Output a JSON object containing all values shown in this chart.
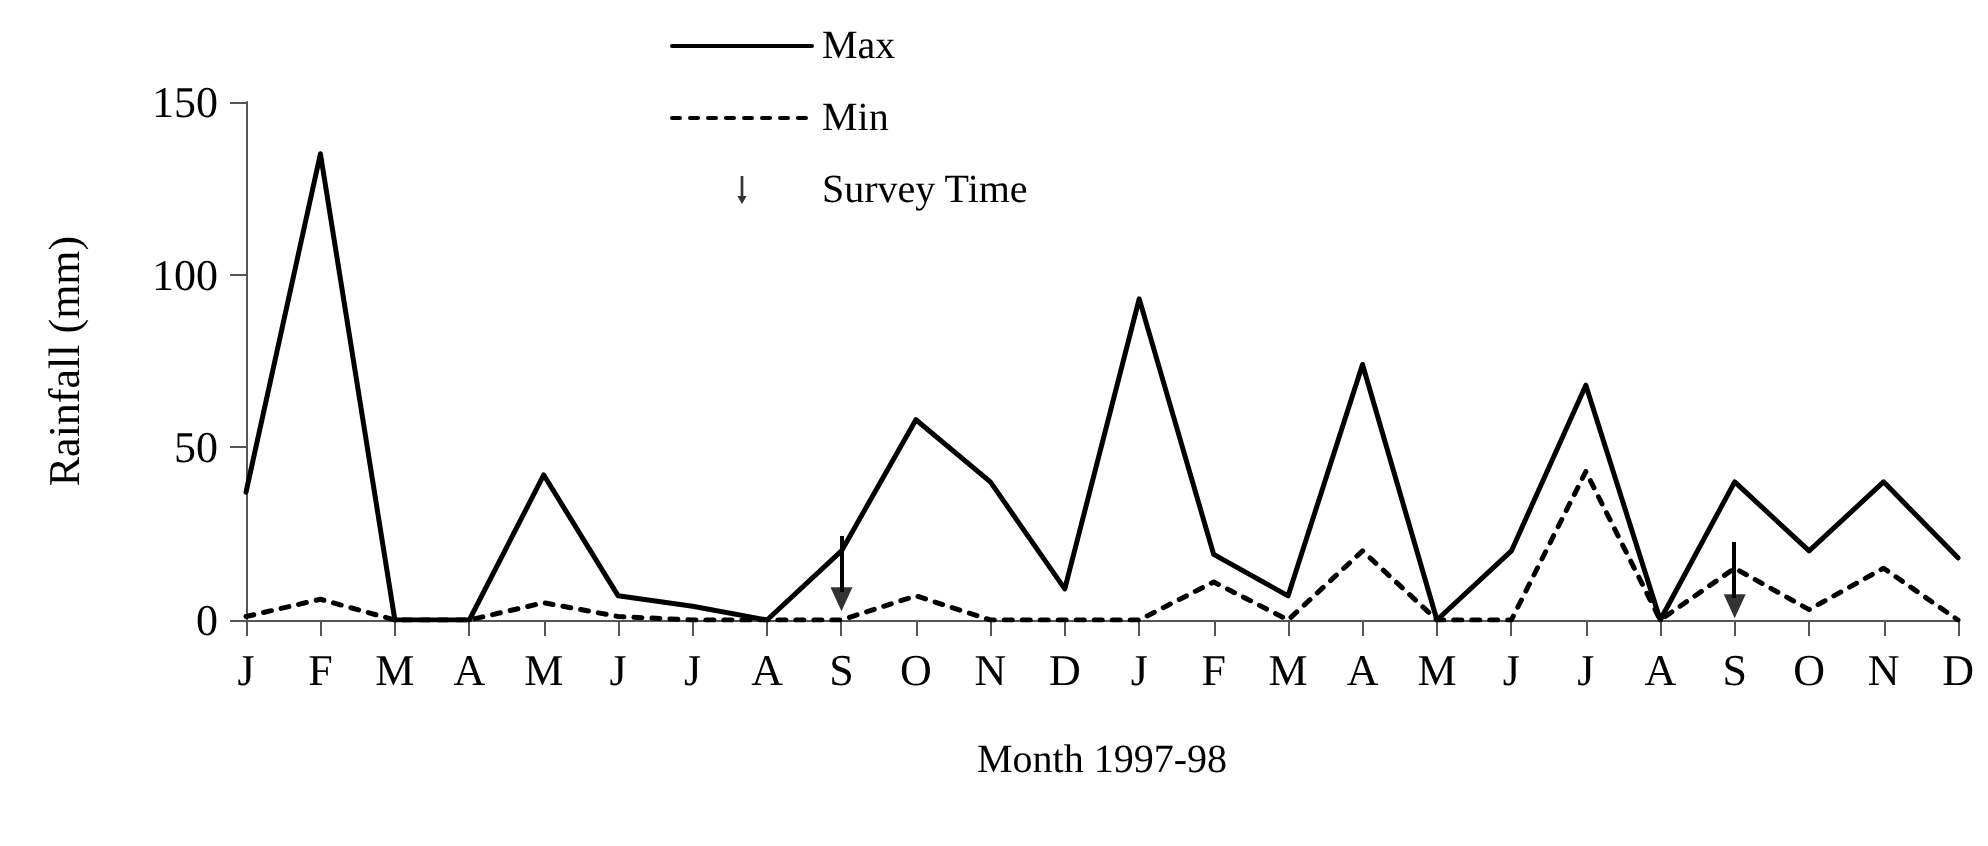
{
  "chart_data": {
    "type": "line",
    "xlabel": "Month 1997-98",
    "ylabel": "Rainfall (mm)",
    "categories": [
      "J",
      "F",
      "M",
      "A",
      "M",
      "J",
      "J",
      "A",
      "S",
      "O",
      "N",
      "D",
      "J",
      "F",
      "M",
      "A",
      "M",
      "J",
      "J",
      "A",
      "S",
      "O",
      "N",
      "D"
    ],
    "series": [
      {
        "name": "Max",
        "color": "#000000",
        "line_style": "solid",
        "values": [
          37,
          135,
          0,
          0,
          42,
          7,
          4,
          0,
          20,
          58,
          40,
          9,
          93,
          19,
          7,
          74,
          0,
          20,
          68,
          0,
          40,
          20,
          40,
          18
        ]
      },
      {
        "name": "Min",
        "color": "#000000",
        "line_style": "dashed",
        "values": [
          1,
          6,
          0,
          0,
          5,
          1,
          0,
          0,
          0,
          7,
          0,
          0,
          0,
          11,
          0,
          20,
          0,
          0,
          43,
          0,
          15,
          3,
          15,
          0
        ]
      },
      {
        "name": "Survey Time",
        "type": "scatter",
        "marker": "triangle",
        "color": "#000000",
        "values": [
          null,
          null,
          null,
          null,
          null,
          null,
          null,
          null,
          6,
          null,
          null,
          null,
          null,
          null,
          null,
          null,
          null,
          null,
          null,
          null,
          4,
          null,
          null,
          null
        ]
      }
    ],
    "ylim": [
      0,
      150
    ],
    "yticks": [
      0,
      50,
      100,
      150
    ],
    "grid": false,
    "legend": "top",
    "marker": "none"
  }
}
